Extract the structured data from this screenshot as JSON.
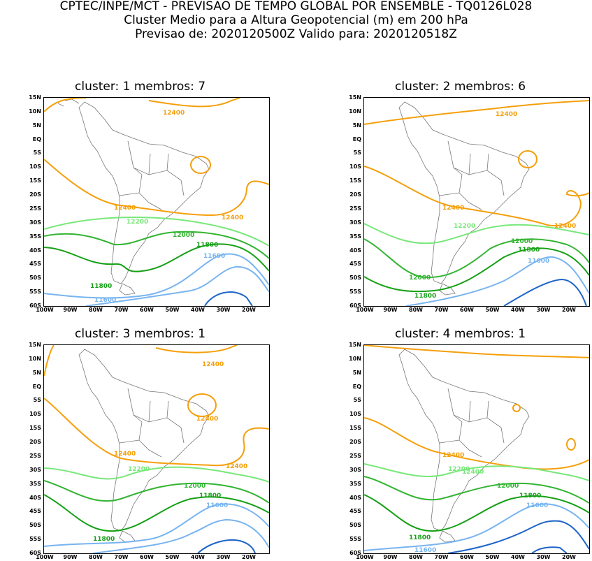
{
  "header": {
    "line1": "CPTEC/INPE/MCT - PREVISAO DE TEMPO GLOBAL POR ENSEMBLE - TQ0126L028",
    "line2": "Cluster Medio para a Altura Geopotencial (m) em 200 hPa",
    "line3": "Previsao de: 2020120500Z   Valido para: 2020120518Z"
  },
  "lat_ticks": [
    "15N",
    "10N",
    "5N",
    "EQ",
    "5S",
    "10S",
    "15S",
    "20S",
    "25S",
    "30S",
    "35S",
    "40S",
    "45S",
    "50S",
    "55S",
    "60S"
  ],
  "lon_ticks": [
    "100W",
    "90W",
    "80W",
    "70W",
    "60W",
    "50W",
    "40W",
    "30W",
    "20W"
  ],
  "colors": {
    "c12400": "#f59f0a",
    "c12200": "#78e87a",
    "c12000": "#32b432",
    "c11800": "#16a016",
    "c11600": "#78b4f0",
    "c11400": "#1e64c8",
    "coast": "#777777"
  },
  "panels": [
    {
      "title": "cluster: 1   membros: 7",
      "labels": {
        "a": "12400",
        "b": "12400",
        "c": "12400",
        "d": "12200",
        "e": "12000",
        "f": "11800",
        "g": "11600",
        "h": "11800",
        "i": "11600"
      }
    },
    {
      "title": "cluster: 2   membros: 6",
      "labels": {
        "a": "12400",
        "b": "12400",
        "c": "12400",
        "d": "12200",
        "e": "12000",
        "f": "11800",
        "g": "11600",
        "h": "12000",
        "i": "11800"
      }
    },
    {
      "title": "cluster: 3   membros: 1",
      "labels": {
        "a": "12400",
        "b": "12400",
        "c": "12400",
        "d": "12200",
        "e": "12000",
        "f": "11800",
        "g": "11600",
        "h": "11800",
        "i": "12400"
      }
    },
    {
      "title": "cluster: 4   membros: 1",
      "labels": {
        "a": "12400",
        "b": "12400",
        "c": "12200",
        "d": "12000",
        "e": "11800",
        "f": "11600",
        "g": "11800",
        "h": "11600"
      }
    }
  ]
}
